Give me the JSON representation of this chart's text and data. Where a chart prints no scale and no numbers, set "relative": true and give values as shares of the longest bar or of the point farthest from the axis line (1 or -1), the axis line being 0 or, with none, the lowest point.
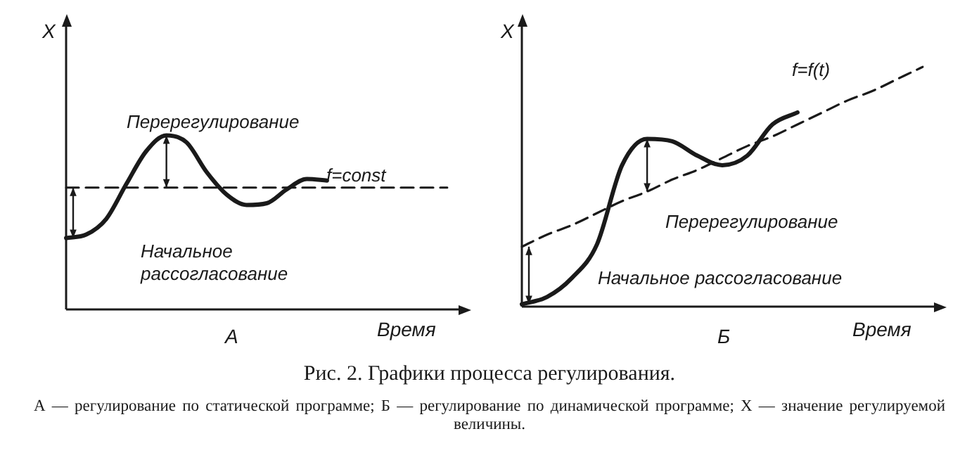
{
  "chart_data": [
    {
      "type": "line",
      "title": "А",
      "xlabel": "Время",
      "ylabel": "X",
      "relative": true,
      "tick_labels": false,
      "categories": [
        null,
        null,
        null,
        null,
        null,
        null,
        null,
        null,
        null,
        null,
        null,
        null,
        null,
        null,
        null,
        null,
        null,
        null,
        null,
        null
      ],
      "series": [
        {
          "color": "#1a1a1a",
          "line_style": "solid",
          "values": [
            0.41,
            0.43,
            0.52,
            0.72,
            0.91,
            1,
            0.96,
            0.79,
            0.66,
            0.6,
            0.61,
            0.69,
            0.75,
            0.74,
            null,
            null,
            null,
            null,
            null,
            null
          ]
        },
        {
          "color": "#1a1a1a",
          "line_style": "dashed",
          "values": [
            0.7,
            0.7,
            0.7,
            0.7,
            0.7,
            0.7,
            0.7,
            0.7,
            0.7,
            0.7,
            0.7,
            0.7,
            0.7,
            0.7,
            0.7,
            0.7,
            0.7,
            0.7,
            0.7,
            0.7
          ]
        }
      ],
      "annotations": [
        "Перерегулирование",
        "Начальное рассогласование",
        "f=const",
        "Рис. 2. Графики процесса регулирования.",
        "А — регулирование по статической программе; Б — регулирование по динамической программе; X — значение регулируемой величины."
      ]
    },
    {
      "type": "line",
      "title": "Б",
      "xlabel": "Время",
      "ylabel": "X",
      "relative": true,
      "tick_labels": false,
      "categories": [
        null,
        null,
        null,
        null,
        null,
        null,
        null,
        null,
        null,
        null,
        null,
        null,
        null,
        null,
        null,
        null,
        null
      ],
      "series": [
        {
          "color": "#1a1a1a",
          "line_style": "solid",
          "values": [
            0.01,
            0.04,
            0.12,
            0.26,
            0.59,
            0.7,
            0.69,
            0.63,
            0.59,
            0.63,
            0.76,
            0.81,
            null,
            null,
            null,
            null,
            null
          ]
        },
        {
          "color": "#1a1a1a",
          "line_style": "dashed",
          "values": [
            0.25,
            0.3,
            0.34,
            0.39,
            0.44,
            0.48,
            0.53,
            0.57,
            0.62,
            0.67,
            0.71,
            0.76,
            0.81,
            0.86,
            0.9,
            0.95,
            1
          ]
        }
      ],
      "annotations": [
        "f=f(t)",
        "Перерегулирование",
        "Начальное рассогласование"
      ]
    }
  ]
}
